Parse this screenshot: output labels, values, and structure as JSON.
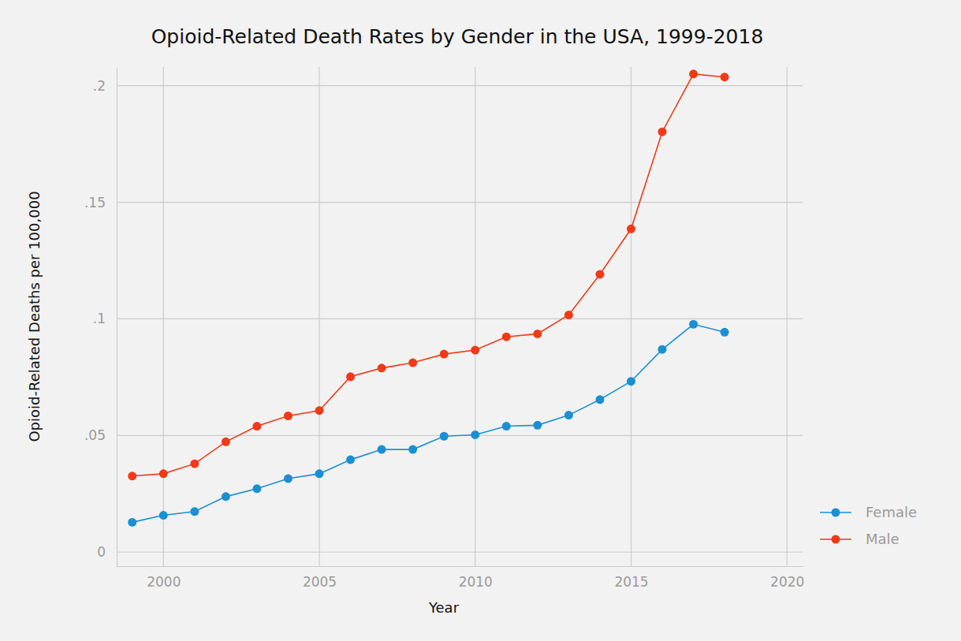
{
  "chart_data": {
    "type": "line",
    "title": "Opioid-Related Death Rates by Gender in the USA, 1999-2018",
    "x_label": "Year",
    "y_label": "Opioid-Related Deaths per 100,000",
    "x": [
      1999,
      2000,
      2001,
      2002,
      2003,
      2004,
      2005,
      2006,
      2007,
      2008,
      2009,
      2010,
      2011,
      2012,
      2013,
      2014,
      2015,
      2016,
      2017,
      2018
    ],
    "series": [
      {
        "name": "Female",
        "color": "#1a8fd4",
        "marker": "circle",
        "line_style": "solid",
        "values": [
          0.0128,
          0.0158,
          0.0174,
          0.0238,
          0.0272,
          0.0315,
          0.0336,
          0.0396,
          0.044,
          0.044,
          0.0497,
          0.0503,
          0.054,
          0.0544,
          0.0587,
          0.0654,
          0.0732,
          0.0869,
          0.0977,
          0.0943
        ]
      },
      {
        "name": "Male",
        "color": "#f03a17",
        "marker": "circle",
        "line_style": "solid",
        "values": [
          0.0326,
          0.0336,
          0.0379,
          0.0473,
          0.054,
          0.0584,
          0.0607,
          0.0752,
          0.0789,
          0.0812,
          0.0849,
          0.0866,
          0.0923,
          0.0936,
          0.1017,
          0.1191,
          0.1386,
          0.1802,
          0.205,
          0.2037
        ]
      }
    ],
    "xlim": [
      1998.5,
      2020.5
    ],
    "xticks": [
      2000,
      2005,
      2010,
      2015,
      2020
    ],
    "ylim": [
      -0.006,
      0.208
    ],
    "yticks": [
      0,
      {
        "value": 0.05,
        "label": ".05"
      },
      {
        "value": 0.1,
        "label": ".1"
      },
      {
        "value": 0.15,
        "label": ".15"
      },
      {
        "value": 0.2,
        "label": ".2"
      }
    ],
    "grid": true,
    "legend": "right"
  }
}
